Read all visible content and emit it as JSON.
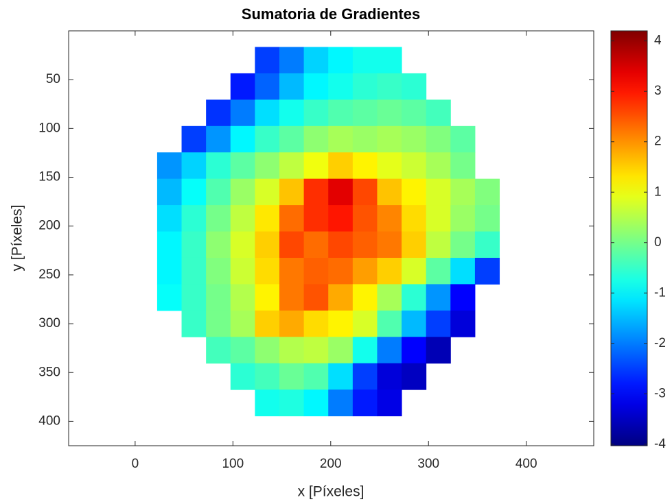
{
  "chart_data": {
    "type": "heatmap",
    "title": "Sumatoria de Gradientes",
    "x_label": "x [Píxeles]",
    "y_label": "y [Píxeles]",
    "xlim": [
      -68,
      469
    ],
    "ylim": [
      0,
      425
    ],
    "y_reversed": true,
    "xticks": [
      0,
      100,
      200,
      300,
      400
    ],
    "yticks": [
      50,
      100,
      150,
      200,
      250,
      300,
      350,
      400
    ],
    "x": [
      35,
      60,
      85,
      110,
      135,
      160,
      185,
      210,
      235,
      260,
      285,
      310,
      335,
      360
    ],
    "y": [
      30,
      57,
      84,
      111,
      138,
      165,
      192,
      219,
      246,
      273,
      300,
      327,
      354,
      381
    ],
    "z": [
      [
        null,
        null,
        null,
        null,
        -2.5,
        -2,
        -1.3,
        -1,
        -0.8,
        -0.8,
        null,
        null,
        null,
        null
      ],
      [
        null,
        null,
        null,
        -2.8,
        -2.2,
        -1.5,
        -1,
        -0.8,
        -0.6,
        -0.5,
        -0.6,
        null,
        null,
        null
      ],
      [
        null,
        null,
        -2.6,
        -2,
        -1.2,
        -0.8,
        -0.5,
        -0.3,
        -0.2,
        -0.1,
        -0.2,
        -0.4,
        null,
        null
      ],
      [
        null,
        -2.5,
        -1.8,
        -1,
        -0.5,
        -0.2,
        0.2,
        0.4,
        0.3,
        0.4,
        0.3,
        0.1,
        -0.2,
        null
      ],
      [
        -1.8,
        -1.3,
        -0.6,
        -0.2,
        0.2,
        0.6,
        1,
        1.5,
        1.2,
        0.9,
        0.7,
        0.4,
        0,
        null
      ],
      [
        -1.5,
        -0.9,
        -0.3,
        0.3,
        0.8,
        1.6,
        2.8,
        3.4,
        2.6,
        1.6,
        1.2,
        0.8,
        0.4,
        0.1
      ],
      [
        -1.2,
        -0.6,
        0,
        0.6,
        1.3,
        2.3,
        2.8,
        3,
        2.5,
        2.1,
        1.4,
        0.8,
        0.3,
        0
      ],
      [
        -1,
        -0.5,
        0.2,
        0.8,
        1.5,
        2.6,
        2.3,
        2.6,
        2.4,
        2.2,
        1.5,
        0.6,
        0,
        -0.5
      ],
      [
        -1,
        -0.5,
        0.1,
        0.7,
        1.4,
        2.2,
        2.4,
        2.3,
        1.9,
        1.5,
        0.8,
        -0.2,
        -1.2,
        -2.5
      ],
      [
        -0.9,
        -0.5,
        0,
        0.5,
        1.2,
        2.2,
        2.5,
        1.8,
        1.2,
        0.4,
        -0.6,
        -1.8,
        -3,
        null
      ],
      [
        null,
        -0.5,
        0,
        0.4,
        1.5,
        1.8,
        1.4,
        1.2,
        0.8,
        -0.3,
        -1.5,
        -2.5,
        -3.3,
        null
      ],
      [
        null,
        null,
        -0.4,
        -0.2,
        0.2,
        0.5,
        0.6,
        0.3,
        -0.8,
        -2,
        -3,
        -3.6,
        null,
        null
      ],
      [
        null,
        null,
        null,
        -0.6,
        -0.4,
        -0.1,
        -0.3,
        -1.2,
        -2.5,
        -3.3,
        -3.5,
        null,
        null,
        null
      ],
      [
        null,
        null,
        null,
        null,
        -0.8,
        -0.7,
        -1,
        -2,
        -2.8,
        -3.2,
        null,
        null,
        null,
        null
      ]
    ],
    "colormap": "jet",
    "clim": [
      -4.03,
      4.2
    ],
    "cticks": [
      -4,
      -3,
      -2,
      -1,
      0,
      1,
      2,
      3,
      4
    ]
  }
}
